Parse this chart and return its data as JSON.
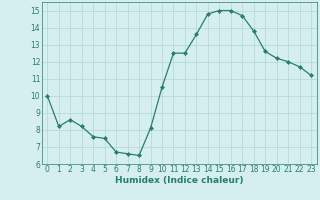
{
  "x": [
    0,
    1,
    2,
    3,
    4,
    5,
    6,
    7,
    8,
    9,
    10,
    11,
    12,
    13,
    14,
    15,
    16,
    17,
    18,
    19,
    20,
    21,
    22,
    23
  ],
  "y": [
    10.0,
    8.2,
    8.6,
    8.2,
    7.6,
    7.5,
    6.7,
    6.6,
    6.5,
    8.1,
    10.5,
    12.5,
    12.5,
    13.6,
    14.8,
    15.0,
    15.0,
    14.7,
    13.8,
    12.6,
    12.2,
    12.0,
    11.7,
    11.2
  ],
  "xlabel": "Humidex (Indice chaleur)",
  "ylim": [
    6,
    15.5
  ],
  "xlim": [
    -0.5,
    23.5
  ],
  "line_color": "#2a7d6e",
  "marker_color": "#2a7d6e",
  "bg_color": "#d5efee",
  "grid_color": "#b0d8d5",
  "yticks": [
    6,
    7,
    8,
    9,
    10,
    11,
    12,
    13,
    14,
    15
  ],
  "xticks": [
    0,
    1,
    2,
    3,
    4,
    5,
    6,
    7,
    8,
    9,
    10,
    11,
    12,
    13,
    14,
    15,
    16,
    17,
    18,
    19,
    20,
    21,
    22,
    23
  ],
  "tick_color": "#2a7d6e",
  "xlabel_fontsize": 6.5,
  "tick_fontsize": 5.5
}
